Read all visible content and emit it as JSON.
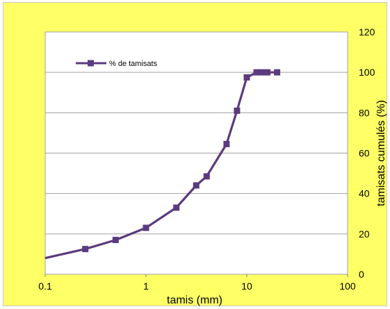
{
  "chart_data": {
    "type": "line",
    "xscale": "log",
    "xlim": [
      0.1,
      100
    ],
    "ylim": [
      0,
      120
    ],
    "x_ticks": [
      "0.1",
      "1",
      "10",
      "100"
    ],
    "y_ticks": [
      "0",
      "20",
      "40",
      "60",
      "80",
      "100",
      "120"
    ],
    "xlabel": "tamis (mm)",
    "ylabel": "tamisats cumulés (%)",
    "grid": "horizontal",
    "legend": "top-left",
    "series": [
      {
        "name": "% de tamisats",
        "color": "#5b3a7e",
        "marker": "square",
        "line_start": {
          "x": 0.1,
          "y": 8
        },
        "points": [
          {
            "x": 0.25,
            "y": 12.5
          },
          {
            "x": 0.5,
            "y": 17
          },
          {
            "x": 1,
            "y": 23
          },
          {
            "x": 2,
            "y": 33
          },
          {
            "x": 3.15,
            "y": 44
          },
          {
            "x": 4,
            "y": 48.5
          },
          {
            "x": 6.3,
            "y": 64.5
          },
          {
            "x": 8,
            "y": 81
          },
          {
            "x": 10,
            "y": 97.5
          },
          {
            "x": 12.5,
            "y": 100
          },
          {
            "x": 14,
            "y": 100
          },
          {
            "x": 16,
            "y": 100
          },
          {
            "x": 20,
            "y": 100
          }
        ]
      }
    ]
  }
}
